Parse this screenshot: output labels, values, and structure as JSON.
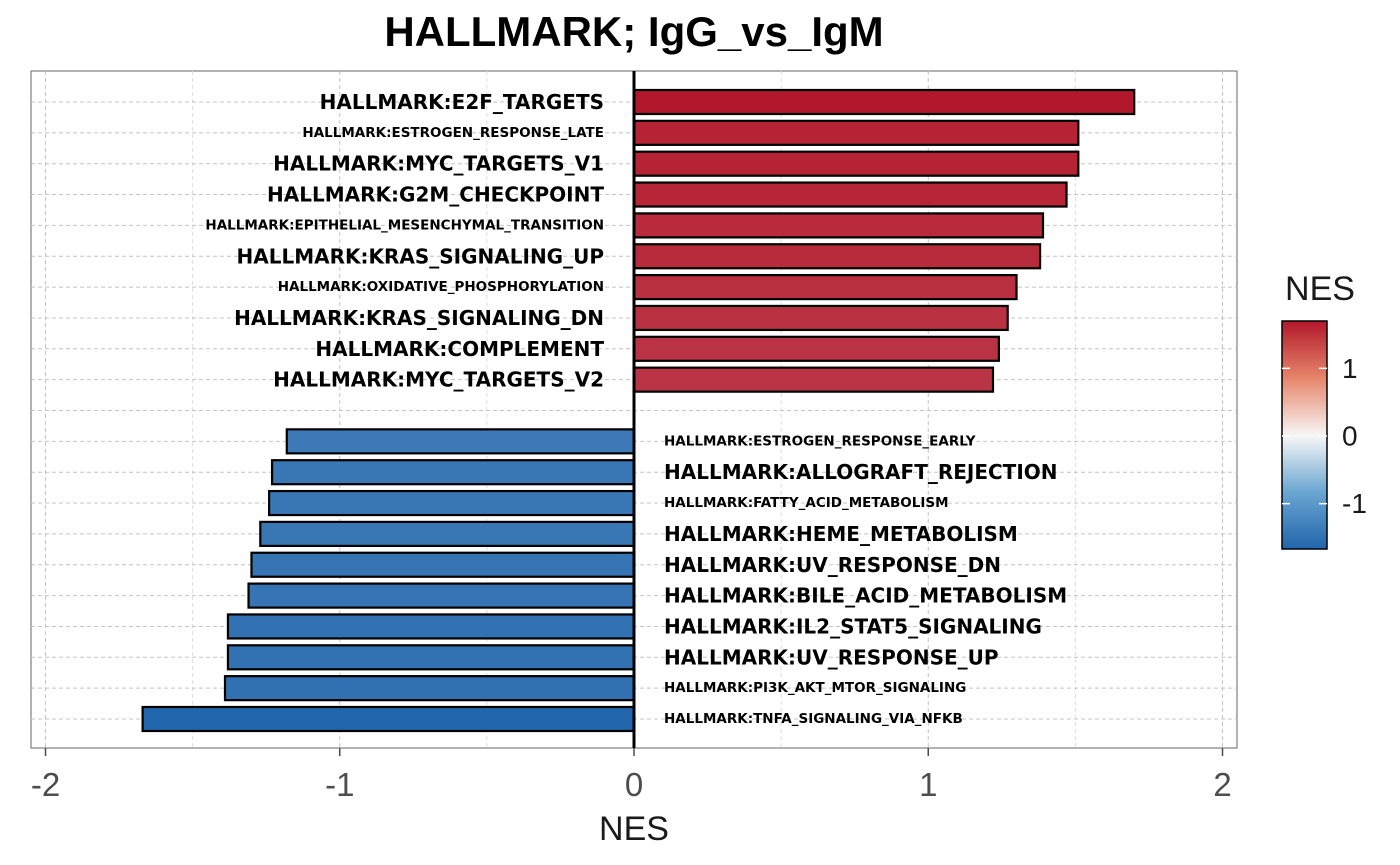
{
  "chart_data": {
    "type": "bar",
    "orientation": "horizontal",
    "title": "HALLMARK; IgG_vs_IgM",
    "xlabel": "NES",
    "ylabel": "",
    "xlim": [
      -2.05,
      2.05
    ],
    "xticks": [
      -2,
      -1,
      0,
      1,
      2
    ],
    "xtick_labels": [
      "-2",
      "-1",
      "0",
      "1",
      "2"
    ],
    "grid": true,
    "legend": {
      "title": "NES",
      "position": "right",
      "type": "colorbar",
      "range": [
        -1.67,
        1.7
      ],
      "ticks": [
        1,
        0,
        -1
      ],
      "tick_labels": [
        "1",
        "0",
        "-1"
      ],
      "colors": {
        "low": "#2166ac",
        "mid": "#f7f7f7",
        "high": "#b2182b"
      }
    },
    "up_pathways": [
      {
        "label": "HALLMARK:E2F_TARGETS",
        "value": 1.7,
        "size": "large"
      },
      {
        "label": "HALLMARK:ESTROGEN_RESPONSE_LATE",
        "value": 1.51,
        "size": "small"
      },
      {
        "label": "HALLMARK:MYC_TARGETS_V1",
        "value": 1.51,
        "size": "large"
      },
      {
        "label": "HALLMARK:G2M_CHECKPOINT",
        "value": 1.47,
        "size": "large"
      },
      {
        "label": "HALLMARK:EPITHELIAL_MESENCHYMAL_TRANSITION",
        "value": 1.39,
        "size": "small"
      },
      {
        "label": "HALLMARK:KRAS_SIGNALING_UP",
        "value": 1.38,
        "size": "large"
      },
      {
        "label": "HALLMARK:OXIDATIVE_PHOSPHORYLATION",
        "value": 1.3,
        "size": "small"
      },
      {
        "label": "HALLMARK:KRAS_SIGNALING_DN",
        "value": 1.27,
        "size": "large"
      },
      {
        "label": "HALLMARK:COMPLEMENT",
        "value": 1.24,
        "size": "large"
      },
      {
        "label": "HALLMARK:MYC_TARGETS_V2",
        "value": 1.22,
        "size": "large"
      }
    ],
    "down_pathways": [
      {
        "label": "HALLMARK:ESTROGEN_RESPONSE_EARLY",
        "value": -1.18,
        "size": "small"
      },
      {
        "label": "HALLMARK:ALLOGRAFT_REJECTION",
        "value": -1.23,
        "size": "large"
      },
      {
        "label": "HALLMARK:FATTY_ACID_METABOLISM",
        "value": -1.24,
        "size": "small"
      },
      {
        "label": "HALLMARK:HEME_METABOLISM",
        "value": -1.27,
        "size": "large"
      },
      {
        "label": "HALLMARK:UV_RESPONSE_DN",
        "value": -1.3,
        "size": "large"
      },
      {
        "label": "HALLMARK:BILE_ACID_METABOLISM",
        "value": -1.31,
        "size": "large"
      },
      {
        "label": "HALLMARK:IL2_STAT5_SIGNALING",
        "value": -1.38,
        "size": "large"
      },
      {
        "label": "HALLMARK:UV_RESPONSE_UP",
        "value": -1.38,
        "size": "large"
      },
      {
        "label": "HALLMARK:PI3K_AKT_MTOR_SIGNALING",
        "value": -1.39,
        "size": "small"
      },
      {
        "label": "HALLMARK:TNFA_SIGNALING_VIA_NFKB",
        "value": -1.67,
        "size": "small"
      }
    ]
  }
}
